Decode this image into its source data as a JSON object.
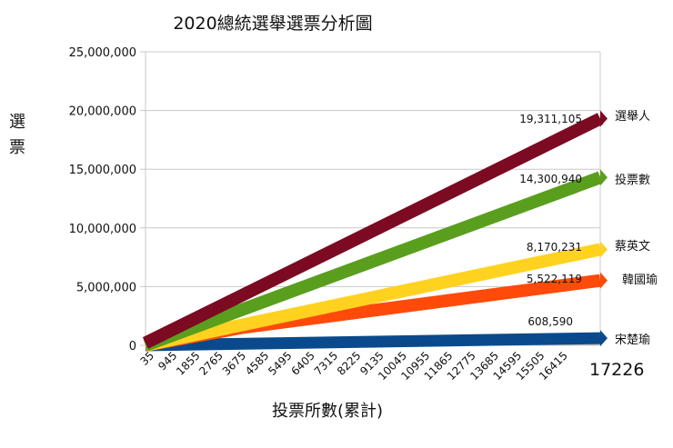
{
  "chart_data": {
    "type": "line",
    "title": "2020總統選舉選票分析圖",
    "xlabel": "投票所數(累計)",
    "ylabel": "選票",
    "ylim": [
      0,
      25000000
    ],
    "yticks": [
      0,
      5000000,
      10000000,
      15000000,
      20000000,
      25000000
    ],
    "ytick_labels": [
      "0",
      "5,000,000",
      "10,000,000",
      "15,000,000",
      "20,000,000",
      "25,000,000"
    ],
    "xtick_labels": [
      "35",
      "945",
      "1855",
      "2765",
      "3675",
      "4585",
      "5495",
      "6405",
      "7315",
      "8225",
      "9135",
      "10045",
      "10955",
      "11865",
      "12775",
      "13685",
      "14595",
      "15505",
      "16415"
    ],
    "x_last_label": "17226",
    "grid": true,
    "series": [
      {
        "name": "選舉人",
        "color": "#7b0a22",
        "x": [
          35,
          17226
        ],
        "values": [
          200000,
          19311105
        ],
        "end_label": "19,311,105"
      },
      {
        "name": "投票數",
        "color": "#5a9e1e",
        "x": [
          35,
          17226
        ],
        "values": [
          0,
          14300940
        ],
        "end_label": "14,300,940"
      },
      {
        "name": "蔡英文",
        "color": "#ffd21f",
        "x": [
          35,
          17226
        ],
        "values": [
          0,
          8170231
        ],
        "end_label": "8,170,231"
      },
      {
        "name": "韓國瑜",
        "color": "#ff4a0a",
        "x": [
          35,
          3675,
          17226
        ],
        "values": [
          0,
          1500000,
          5522119
        ],
        "end_label": "5,522,119"
      },
      {
        "name": "宋楚瑜",
        "color": "#0a4a8c",
        "x": [
          35,
          17226
        ],
        "values": [
          0,
          608590
        ],
        "end_label": "608,590"
      }
    ]
  }
}
